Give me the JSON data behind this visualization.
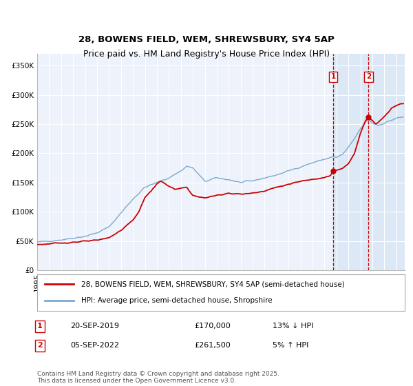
{
  "title": "28, BOWENS FIELD, WEM, SHREWSBURY, SY4 5AP",
  "subtitle": "Price paid vs. HM Land Registry's House Price Index (HPI)",
  "ylim": [
    0,
    370000
  ],
  "yticks": [
    0,
    50000,
    100000,
    150000,
    200000,
    250000,
    300000,
    350000
  ],
  "ytick_labels": [
    "£0",
    "£50K",
    "£100K",
    "£150K",
    "£200K",
    "£250K",
    "£300K",
    "£350K"
  ],
  "xlim_start": 1995.0,
  "xlim_end": 2025.7,
  "background_color": "#ffffff",
  "plot_bg_color": "#eef2fa",
  "grid_color": "#ffffff",
  "hpi_color": "#7aaad0",
  "price_color": "#cc0000",
  "shade_color": "#dce8f5",
  "vline_color": "#cc0000",
  "transaction1_x": 2019.72,
  "transaction1_y": 170000,
  "transaction1_label": "1",
  "transaction2_x": 2022.68,
  "transaction2_y": 261500,
  "transaction2_label": "2",
  "legend_line1": "28, BOWENS FIELD, WEM, SHREWSBURY, SY4 5AP (semi-detached house)",
  "legend_line2": "HPI: Average price, semi-detached house, Shropshire",
  "annotation1_box": "1",
  "annotation1_date": "20-SEP-2019",
  "annotation1_price": "£170,000",
  "annotation1_hpi": "13% ↓ HPI",
  "annotation2_box": "2",
  "annotation2_date": "05-SEP-2022",
  "annotation2_price": "£261,500",
  "annotation2_hpi": "5% ↑ HPI",
  "footer": "Contains HM Land Registry data © Crown copyright and database right 2025.\nThis data is licensed under the Open Government Licence v3.0.",
  "title_fontsize": 9.5,
  "tick_fontsize": 7.5,
  "legend_fontsize": 7.5,
  "annotation_fontsize": 8,
  "footer_fontsize": 6.5
}
